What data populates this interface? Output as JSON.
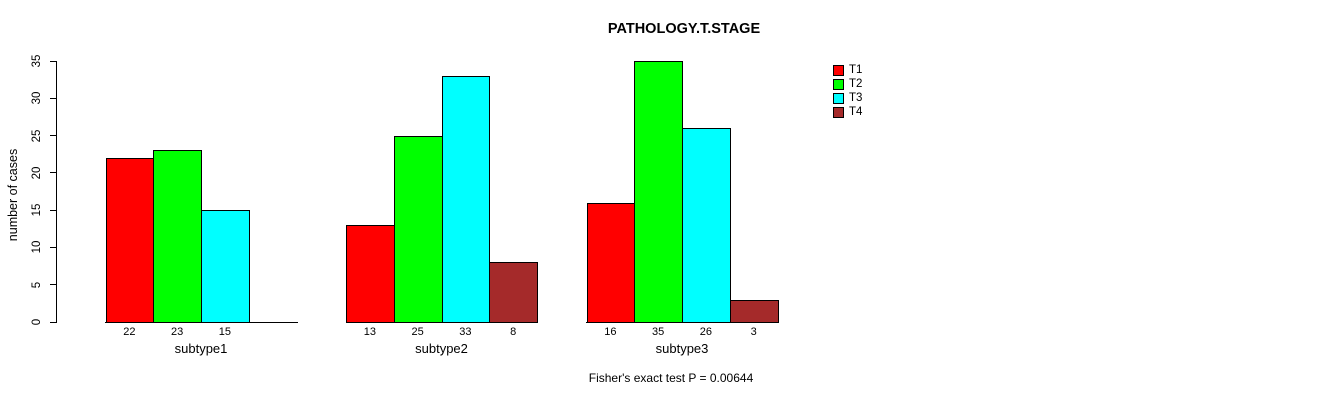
{
  "chart_data": {
    "type": "bar",
    "title": "PATHOLOGY.T.STAGE",
    "xlabel": "",
    "ylabel": "number of cases",
    "annotation": "Fisher's exact test P = 0.00644",
    "categories": [
      "subtype1",
      "subtype2",
      "subtype3"
    ],
    "series": [
      {
        "name": "T1",
        "color": "#FF0000",
        "values": [
          22,
          13,
          16
        ]
      },
      {
        "name": "T2",
        "color": "#00FF00",
        "values": [
          23,
          25,
          35
        ]
      },
      {
        "name": "T3",
        "color": "#00FFFF",
        "values": [
          15,
          33,
          26
        ]
      },
      {
        "name": "T4",
        "color": "#A52A2A",
        "values": [
          null,
          8,
          3
        ]
      }
    ],
    "y_ticks": [
      0,
      5,
      10,
      15,
      20,
      25,
      30,
      35
    ],
    "ylim": [
      0,
      35
    ],
    "grid": false,
    "legend_position": "right",
    "bar_value_labels": true,
    "axis_color": "#000000",
    "background_color": "#FFFFFF"
  }
}
